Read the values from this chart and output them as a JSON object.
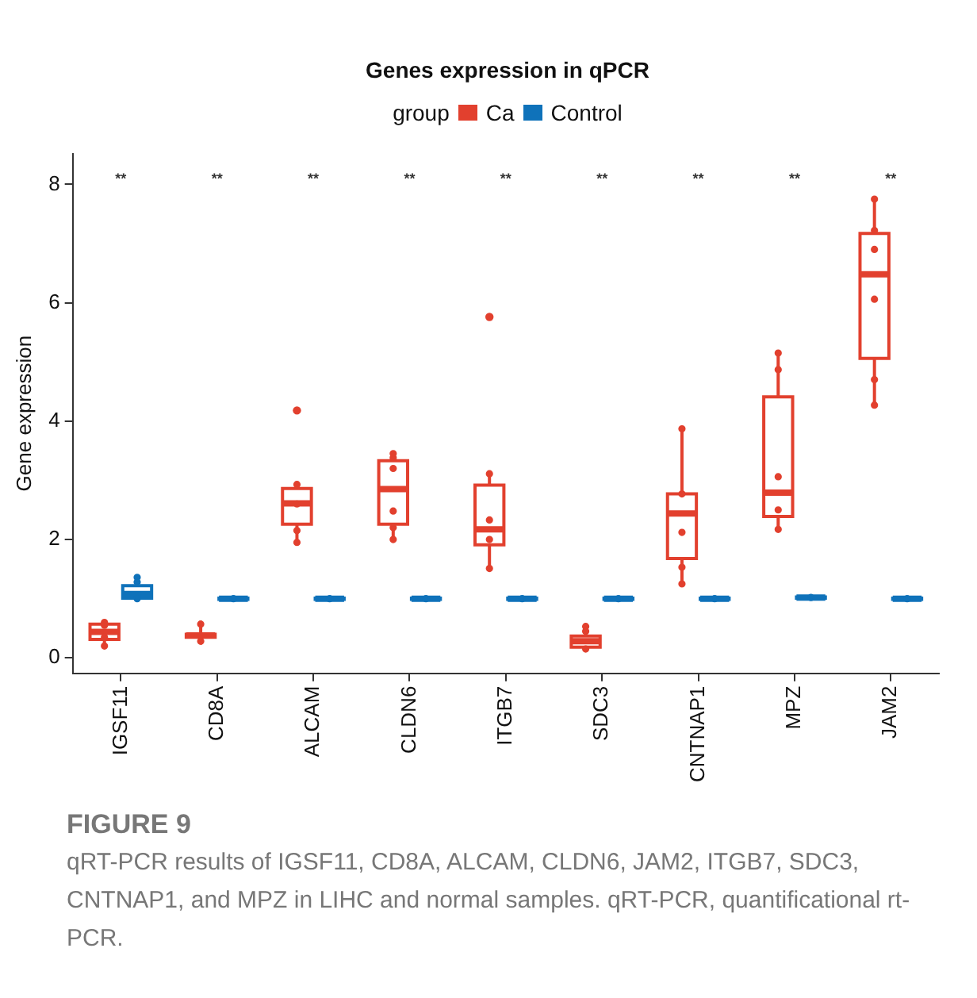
{
  "chart_data": {
    "type": "box",
    "title": "Genes expression in qPCR",
    "ylabel": "Gene expression",
    "legend_title": "group",
    "legend": "top",
    "grid": false,
    "categories": [
      "IGSF11",
      "CD8A",
      "ALCAM",
      "CLDN6",
      "ITGB7",
      "SDC3",
      "CNTNAP1",
      "MPZ",
      "JAM2"
    ],
    "ylim": [
      -0.26,
      8.52
    ],
    "yticks": [
      0,
      2,
      4,
      6,
      8
    ],
    "series": [
      {
        "name": "Ca",
        "color": "#e2402e",
        "boxes": [
          {
            "low": 0.2,
            "q1": 0.31,
            "median": 0.44,
            "q3": 0.57,
            "high": 0.62
          },
          {
            "low": 0.28,
            "q1": 0.35,
            "median": 0.38,
            "q3": 0.4,
            "high": 0.57
          },
          {
            "low": 1.95,
            "q1": 2.26,
            "median": 2.61,
            "q3": 2.86,
            "high": 2.93,
            "outliers": [
              4.18
            ]
          },
          {
            "low": 2.0,
            "q1": 2.26,
            "median": 2.85,
            "q3": 3.33,
            "high": 3.47
          },
          {
            "low": 1.51,
            "q1": 1.91,
            "median": 2.17,
            "q3": 2.92,
            "high": 3.11,
            "outliers": [
              5.76
            ]
          },
          {
            "low": 0.15,
            "q1": 0.18,
            "median": 0.28,
            "q3": 0.37,
            "high": 0.53
          },
          {
            "low": 1.25,
            "q1": 1.68,
            "median": 2.44,
            "q3": 2.77,
            "high": 3.87
          },
          {
            "low": 2.17,
            "q1": 2.39,
            "median": 2.79,
            "q3": 4.41,
            "high": 5.15
          },
          {
            "low": 4.27,
            "q1": 5.06,
            "median": 6.48,
            "q3": 7.17,
            "high": 7.75
          }
        ]
      },
      {
        "name": "Control",
        "color": "#0f72ba",
        "boxes": [
          {
            "low": 1.0,
            "q1": 1.01,
            "median": 1.08,
            "q3": 1.22,
            "high": 1.37
          },
          {
            "low": 0.99,
            "q1": 0.99,
            "median": 1.0,
            "q3": 1.01,
            "high": 1.02
          },
          {
            "low": 0.99,
            "q1": 0.99,
            "median": 1.0,
            "q3": 1.01,
            "high": 1.02
          },
          {
            "low": 0.99,
            "q1": 0.99,
            "median": 1.0,
            "q3": 1.01,
            "high": 1.02
          },
          {
            "low": 0.99,
            "q1": 0.99,
            "median": 1.0,
            "q3": 1.01,
            "high": 1.02
          },
          {
            "low": 0.99,
            "q1": 0.99,
            "median": 1.0,
            "q3": 1.01,
            "high": 1.02
          },
          {
            "low": 0.99,
            "q1": 0.99,
            "median": 1.0,
            "q3": 1.01,
            "high": 1.02
          },
          {
            "low": 1.0,
            "q1": 1.01,
            "median": 1.02,
            "q3": 1.03,
            "high": 1.04
          },
          {
            "low": 0.99,
            "q1": 0.99,
            "median": 1.0,
            "q3": 1.01,
            "high": 1.02
          }
        ]
      },
      {
        "type": "scatter",
        "color": "#e2402e",
        "x": [
          "IGSF11",
          "IGSF11",
          "IGSF11",
          "IGSF11",
          "IGSF11",
          "CD8A",
          "CD8A",
          "ALCAM",
          "ALCAM",
          "ALCAM",
          "ALCAM",
          "CLDN6",
          "CLDN6",
          "CLDN6",
          "CLDN6",
          "CLDN6",
          "CLDN6",
          "ITGB7",
          "ITGB7",
          "ITGB7",
          "ITGB7",
          "SDC3",
          "SDC3",
          "SDC3",
          "CNTNAP1",
          "CNTNAP1",
          "CNTNAP1",
          "CNTNAP1",
          "CNTNAP1",
          "MPZ",
          "MPZ",
          "MPZ",
          "MPZ",
          "MPZ",
          "JAM2",
          "JAM2",
          "JAM2",
          "JAM2",
          "JAM2",
          "JAM2"
        ],
        "values": [
          0.2,
          0.35,
          null,
          0.55,
          0.6,
          0.28,
          0.57,
          2.93,
          2.6,
          2.15,
          1.95,
          3.45,
          3.38,
          3.2,
          2.48,
          2.2,
          2.0,
          3.11,
          2.33,
          2.0,
          1.51,
          0.53,
          0.45,
          0.15,
          3.87,
          2.77,
          2.12,
          1.53,
          1.25,
          5.15,
          4.87,
          3.06,
          2.5,
          2.17,
          7.75,
          7.22,
          6.9,
          6.06,
          4.7,
          4.27
        ]
      },
      {
        "type": "scatter",
        "color": "#0f72ba",
        "x": [
          "IGSF11",
          "IGSF11",
          "IGSF11",
          "CD8A",
          "ALCAM",
          "CLDN6",
          "ITGB7",
          "SDC3",
          "CNTNAP1",
          "MPZ",
          "JAM2"
        ],
        "values": [
          1.0,
          1.28,
          1.36,
          1.0,
          1.0,
          1.0,
          1.0,
          1.0,
          1.0,
          1.02,
          1.0
        ]
      }
    ],
    "annotations": [
      "**",
      "**",
      "**",
      "**",
      "**",
      "**",
      "**",
      "**",
      "**",
      "FIGURE 9",
      "qRT-PCR results of IGSF11, CD8A, ALCAM, CLDN6, JAM2, ITGB7, SDC3, CNTNAP1, and MPZ in LIHC and normal samples. qRT-PCR, quantificational rt-PCR."
    ]
  }
}
